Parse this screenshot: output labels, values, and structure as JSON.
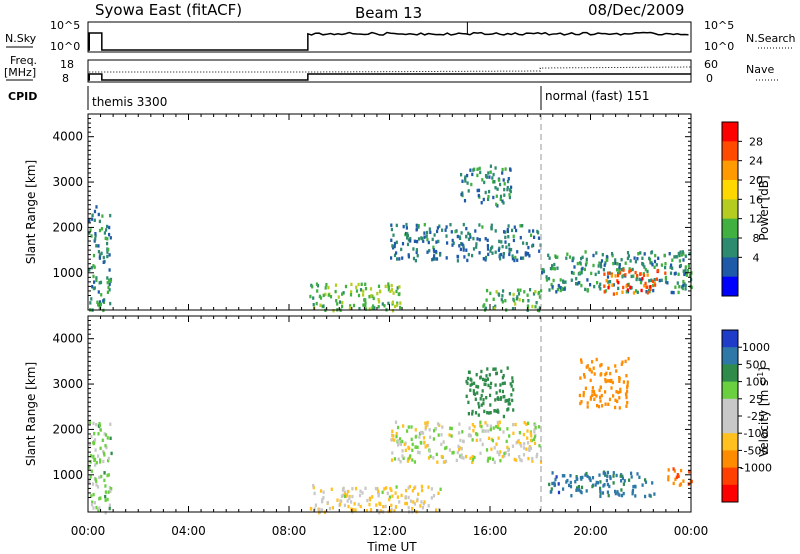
{
  "header": {
    "radar_title": "Syowa East (fitACF)",
    "beam": "Beam 13",
    "date": "08/Dec/2009"
  },
  "panels": {
    "nsky_label": "N.Sky",
    "nsearch_label": "N.Search",
    "nsky_ticks": [
      "10^5",
      "10^0"
    ],
    "freq_label": "Freq.",
    "freq_unit": "[MHz]",
    "freq_ticks": [
      "18",
      "8"
    ],
    "nave_label": "Nave",
    "nave_ticks": [
      "60",
      "0"
    ],
    "cpid_label": "CPID",
    "cpid_segments": [
      "themis 3300",
      "normal (fast) 151"
    ]
  },
  "axes": {
    "time_ticks": [
      "00:00",
      "04:00",
      "08:00",
      "12:00",
      "16:00",
      "20:00",
      "00:00"
    ],
    "range_ticks": [
      "1000",
      "2000",
      "3000",
      "4000"
    ],
    "ylabel": "Slant Range [km]",
    "xlabel": "Time UT"
  },
  "power_scale": {
    "label": "Power [dB]",
    "ticks": [
      "28",
      "24",
      "20",
      "16",
      "12",
      "8",
      "4"
    ],
    "colors": [
      "#ff0000",
      "#ff4a00",
      "#ff9a00",
      "#ffd800",
      "#b4cd20",
      "#40b040",
      "#2e8b70",
      "#1e5aa8",
      "#0000ff"
    ]
  },
  "velocity_scale": {
    "label": "Velocity [m s^-1]",
    "ticks": [
      "1000",
      "500",
      "100",
      "25",
      "-25",
      "-100",
      "-500",
      "-1000"
    ],
    "colors": [
      "#1e3cc8",
      "#2e78a8",
      "#2e8b4a",
      "#6ad040",
      "#c8c8c8",
      "#c8c8c8",
      "#ffc020",
      "#ff8c00",
      "#ff4000",
      "#ff0000"
    ]
  },
  "chart_data": {
    "type": "heatmap",
    "x_range_hours": [
      0,
      24
    ],
    "y_range_km": [
      180,
      4500
    ],
    "mode_change_hour": 18.0,
    "data_gap_hours": [
      1.0,
      8.75
    ],
    "power_echo_regions": [
      {
        "t": [
          0.0,
          0.9
        ],
        "r": [
          200,
          2500
        ],
        "db": 8
      },
      {
        "t": [
          8.8,
          12.5
        ],
        "r": [
          200,
          800
        ],
        "db": 12
      },
      {
        "t": [
          12.0,
          18.0
        ],
        "r": [
          1300,
          2100
        ],
        "db": 6
      },
      {
        "t": [
          14.8,
          16.8
        ],
        "r": [
          2500,
          3400
        ],
        "db": 7
      },
      {
        "t": [
          15.5,
          18.0
        ],
        "r": [
          200,
          700
        ],
        "db": 10
      },
      {
        "t": [
          18.0,
          24.0
        ],
        "r": [
          600,
          1500
        ],
        "db": 8
      },
      {
        "t": [
          20.5,
          23.0
        ],
        "r": [
          550,
          1100
        ],
        "db": 27
      }
    ],
    "velocity_echo_regions": [
      {
        "t": [
          0.0,
          0.9
        ],
        "r": [
          200,
          2200
        ],
        "v": 50
      },
      {
        "t": [
          8.8,
          14.0
        ],
        "r": [
          200,
          800
        ],
        "v": -30
      },
      {
        "t": [
          12.0,
          18.0
        ],
        "r": [
          1300,
          2200
        ],
        "v": 0
      },
      {
        "t": [
          15.0,
          17.0
        ],
        "r": [
          2300,
          3400
        ],
        "v": 200
      },
      {
        "t": [
          18.3,
          22.5
        ],
        "r": [
          550,
          1100
        ],
        "v": 700
      },
      {
        "t": [
          19.5,
          21.5
        ],
        "r": [
          2500,
          3600
        ],
        "v": -300
      },
      {
        "t": [
          23.0,
          24.0
        ],
        "r": [
          800,
          1200
        ],
        "v": -500
      }
    ]
  }
}
